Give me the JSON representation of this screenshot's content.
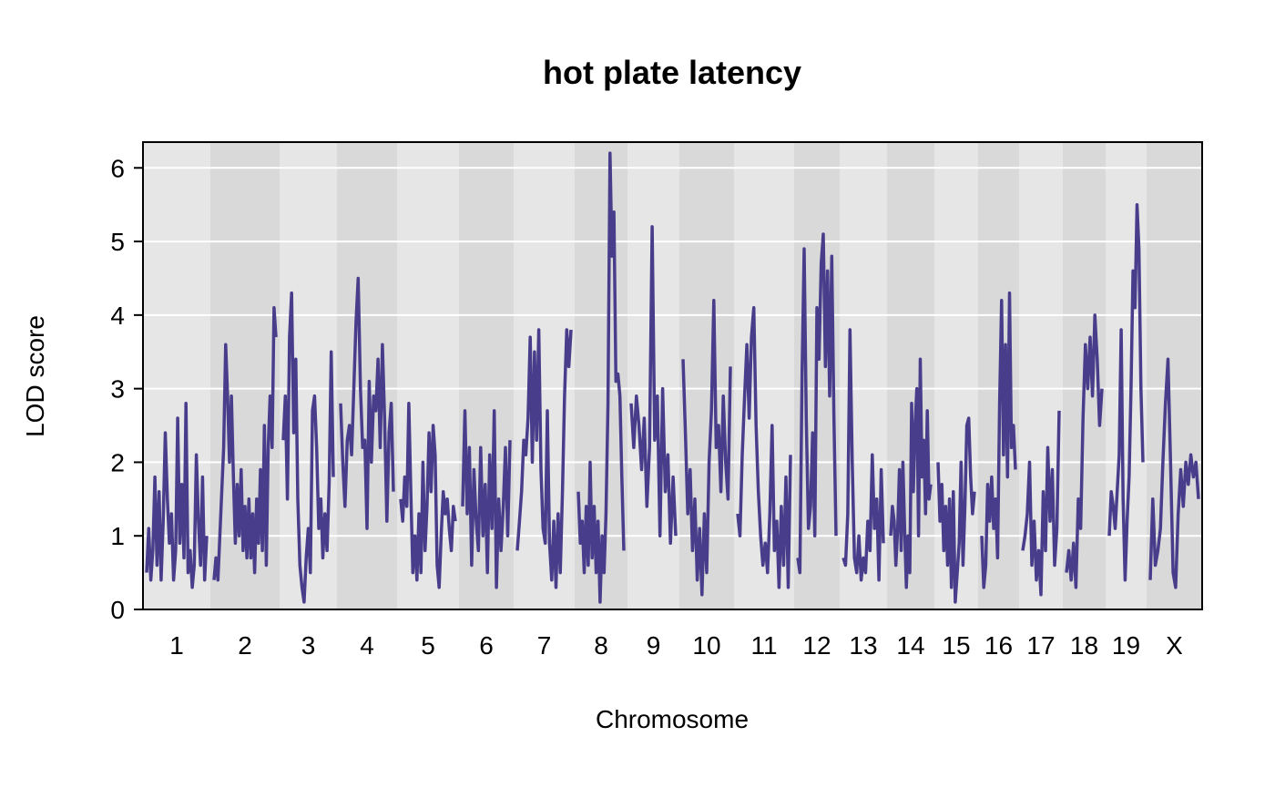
{
  "chart_data": {
    "type": "line",
    "title": "hot plate latency",
    "xlabel": "Chromosome",
    "ylabel": "LOD score",
    "ylim": [
      0,
      6.35
    ],
    "yticks": [
      0,
      1,
      2,
      3,
      4,
      5,
      6
    ],
    "grid": "horizontal",
    "line_color": "#483D8B",
    "band_colors": [
      "#E6E6E6",
      "#D9D9D9"
    ],
    "chromosomes": [
      {
        "label": "1",
        "trace": [
          0.5,
          1.1,
          0.4,
          0.8,
          1.8,
          0.6,
          1.6,
          0.4,
          1.2,
          2.4,
          1.5,
          0.9,
          1.3,
          0.4,
          0.8,
          2.6,
          0.9,
          1.7,
          0.7,
          2.8,
          0.5,
          0.8,
          0.3,
          0.6,
          2.1,
          1.2,
          0.6,
          1.8,
          0.4,
          1.0
        ]
      },
      {
        "label": "2",
        "trace": [
          0.4,
          0.7,
          0.4,
          1.0,
          1.6,
          2.2,
          3.6,
          2.9,
          2.0,
          2.9,
          1.8,
          0.9,
          1.7,
          1.0,
          1.9,
          0.8,
          1.4,
          0.7,
          1.5,
          0.7,
          1.3,
          0.5,
          1.5,
          0.9,
          1.9,
          0.8,
          2.5,
          0.6,
          2.2,
          2.9,
          2.2,
          4.1,
          3.7
        ]
      },
      {
        "label": "3",
        "trace": [
          2.3,
          2.9,
          1.5,
          3.7,
          4.3,
          2.4,
          3.4,
          1.5,
          0.6,
          0.3,
          0.1,
          0.7,
          1.1,
          0.5,
          2.7,
          2.9,
          2.2,
          1.1,
          1.5,
          0.7,
          1.3,
          0.8,
          1.7,
          3.5,
          1.8
        ]
      },
      {
        "label": "4",
        "trace": [
          2.8,
          2.0,
          1.4,
          2.3,
          2.5,
          2.1,
          3.0,
          3.9,
          4.5,
          3.0,
          2.2,
          2.3,
          1.1,
          3.1,
          2.0,
          2.9,
          2.7,
          3.4,
          2.2,
          3.6,
          2.6,
          1.2,
          2.4,
          2.8,
          1.6
        ]
      },
      {
        "label": "5",
        "trace": [
          1.5,
          1.2,
          1.8,
          1.4,
          2.8,
          1.6,
          0.5,
          1.0,
          0.4,
          1.3,
          0.5,
          2.0,
          0.8,
          1.4,
          2.4,
          1.6,
          2.5,
          2.1,
          0.6,
          0.3,
          1.0,
          1.6,
          1.3,
          1.5,
          1.1,
          0.8,
          1.4,
          1.2
        ]
      },
      {
        "label": "6",
        "trace": [
          1.4,
          2.7,
          1.3,
          2.2,
          0.6,
          1.9,
          1.2,
          0.8,
          2.2,
          1.0,
          1.7,
          0.5,
          2.1,
          1.1,
          2.7,
          0.3,
          1.5,
          0.8,
          1.4,
          2.2,
          1.0,
          2.3
        ]
      },
      {
        "label": "7",
        "trace": [
          0.8,
          1.2,
          1.6,
          2.3,
          2.1,
          2.6,
          3.7,
          2.0,
          3.5,
          2.3,
          3.8,
          1.9,
          1.1,
          0.9,
          2.7,
          0.9,
          0.4,
          1.2,
          0.3,
          1.3,
          0.5,
          1.6,
          2.9,
          3.8,
          3.3,
          3.8
        ]
      },
      {
        "label": "8",
        "trace": [
          1.6,
          0.9,
          1.2,
          0.5,
          1.4,
          0.6,
          2.0,
          0.7,
          1.4,
          0.5,
          1.2,
          0.1,
          1.0,
          0.5,
          1.3,
          2.8,
          6.2,
          4.8,
          5.4,
          3.1,
          3.2,
          2.9,
          1.8,
          0.8
        ]
      },
      {
        "label": "9",
        "trace": [
          2.8,
          2.2,
          2.9,
          2.5,
          1.9,
          2.6,
          1.4,
          2.2,
          5.2,
          2.3,
          2.9,
          1.0,
          3.0,
          1.6,
          2.1,
          0.9,
          1.8,
          1.0
        ]
      },
      {
        "label": "10",
        "trace": [
          3.4,
          2.4,
          1.3,
          1.9,
          0.8,
          1.5,
          0.4,
          1.1,
          0.2,
          1.3,
          0.5,
          2.0,
          2.7,
          4.2,
          2.2,
          2.5,
          1.6,
          2.9,
          2.0,
          1.5,
          3.3
        ]
      },
      {
        "label": "11",
        "trace": [
          1.3,
          1.0,
          2.1,
          2.9,
          3.6,
          2.6,
          3.7,
          4.1,
          2.5,
          1.6,
          1.0,
          0.6,
          0.9,
          0.5,
          1.3,
          2.5,
          0.8,
          1.2,
          0.3,
          1.4,
          0.6,
          1.8,
          0.3,
          2.1
        ]
      },
      {
        "label": "12",
        "trace": [
          0.7,
          0.5,
          3.2,
          4.9,
          2.6,
          1.1,
          1.4,
          2.4,
          1.0,
          4.1,
          3.4,
          4.7,
          5.1,
          3.3,
          4.6,
          2.9,
          4.8,
          2.6,
          1.0
        ]
      },
      {
        "label": "13",
        "trace": [
          0.7,
          0.6,
          1.3,
          3.8,
          2.0,
          0.7,
          0.5,
          1.0,
          0.4,
          0.7,
          0.5,
          1.2,
          0.8,
          2.1,
          1.1,
          1.5,
          0.4,
          1.9,
          0.9
        ]
      },
      {
        "label": "14",
        "trace": [
          1.0,
          1.4,
          1.2,
          0.6,
          1.1,
          1.9,
          0.8,
          2.0,
          1.1,
          0.3,
          1.0,
          0.5,
          2.8,
          1.6,
          2.5,
          3.0,
          1.0,
          3.4,
          1.8,
          2.3,
          1.3,
          2.7,
          1.5,
          1.7
        ]
      },
      {
        "label": "15",
        "trace": [
          2.0,
          1.2,
          1.7,
          0.8,
          1.4,
          0.6,
          1.5,
          0.3,
          1.6,
          0.1,
          0.5,
          0.9,
          2.0,
          0.6,
          1.4,
          2.5,
          2.6,
          1.8,
          1.3,
          1.6
        ]
      },
      {
        "label": "16",
        "trace": [
          1.0,
          0.3,
          0.6,
          1.7,
          1.2,
          1.8,
          1.1,
          1.5,
          0.7,
          2.8,
          4.2,
          2.1,
          3.6,
          1.8,
          4.3,
          2.2,
          2.5,
          1.9
        ]
      },
      {
        "label": "17",
        "trace": [
          0.8,
          1.0,
          1.3,
          2.0,
          0.6,
          1.2,
          0.4,
          0.8,
          0.2,
          1.6,
          0.8,
          2.2,
          1.2,
          1.9,
          0.6,
          1.1,
          2.7
        ]
      },
      {
        "label": "18",
        "trace": [
          0.5,
          0.8,
          0.4,
          0.9,
          0.3,
          1.5,
          1.1,
          2.6,
          3.6,
          3.0,
          3.7,
          2.9,
          4.0,
          3.4,
          2.5,
          3.0
        ]
      },
      {
        "label": "19",
        "trace": [
          1.0,
          1.6,
          1.4,
          1.1,
          1.6,
          2.1,
          3.8,
          1.5,
          0.4,
          1.2,
          1.8,
          3.0,
          4.6,
          4.1,
          5.5,
          4.9,
          3.0,
          2.0
        ]
      },
      {
        "label": "X",
        "trace": [
          0.4,
          1.5,
          0.6,
          0.8,
          1.1,
          2.0,
          2.8,
          3.4,
          2.0,
          0.5,
          0.3,
          1.3,
          1.9,
          1.4,
          2.0,
          1.7,
          2.1,
          1.8,
          2.0,
          1.5
        ]
      }
    ]
  }
}
